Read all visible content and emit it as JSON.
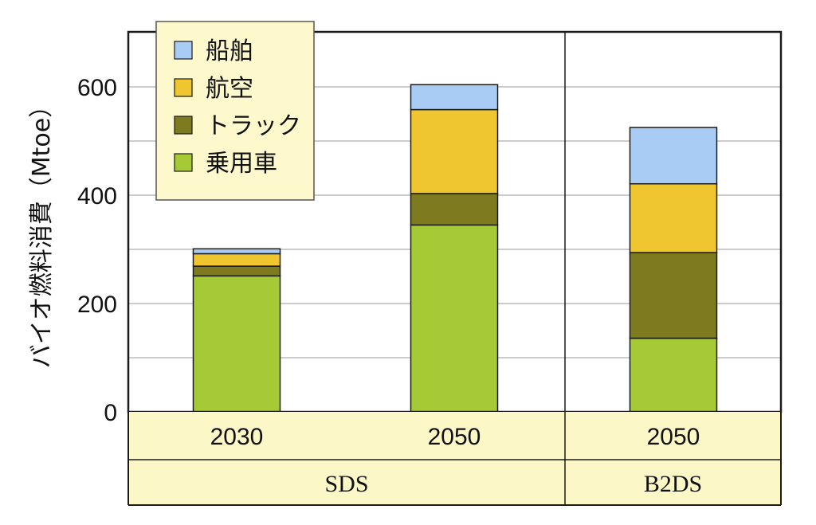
{
  "chart_data": {
    "type": "bar",
    "stacked": true,
    "ylabel": "バイオ燃料消費（Mtoe）",
    "ylim": [
      0,
      700
    ],
    "yticks": [
      0,
      200,
      400,
      600
    ],
    "grid": true,
    "legend_position": "top-left",
    "categories": [
      "2030",
      "2050",
      "2050"
    ],
    "groups": [
      {
        "label": "SDS",
        "span": 2
      },
      {
        "label": "B2DS",
        "span": 1
      }
    ],
    "series": [
      {
        "name": "乗用車",
        "color": "#a6c936",
        "values": [
          251,
          345,
          136
        ]
      },
      {
        "name": "トラック",
        "color": "#7e7a1f",
        "values": [
          18,
          58,
          158
        ]
      },
      {
        "name": "航空",
        "color": "#f0c630",
        "values": [
          23,
          155,
          127
        ]
      },
      {
        "name": "船舶",
        "color": "#a9ccf5",
        "values": [
          9,
          46,
          104
        ]
      }
    ],
    "legend_order": [
      "船舶",
      "航空",
      "トラック",
      "乗用車"
    ],
    "category_band_color": "#fbf7c6"
  }
}
